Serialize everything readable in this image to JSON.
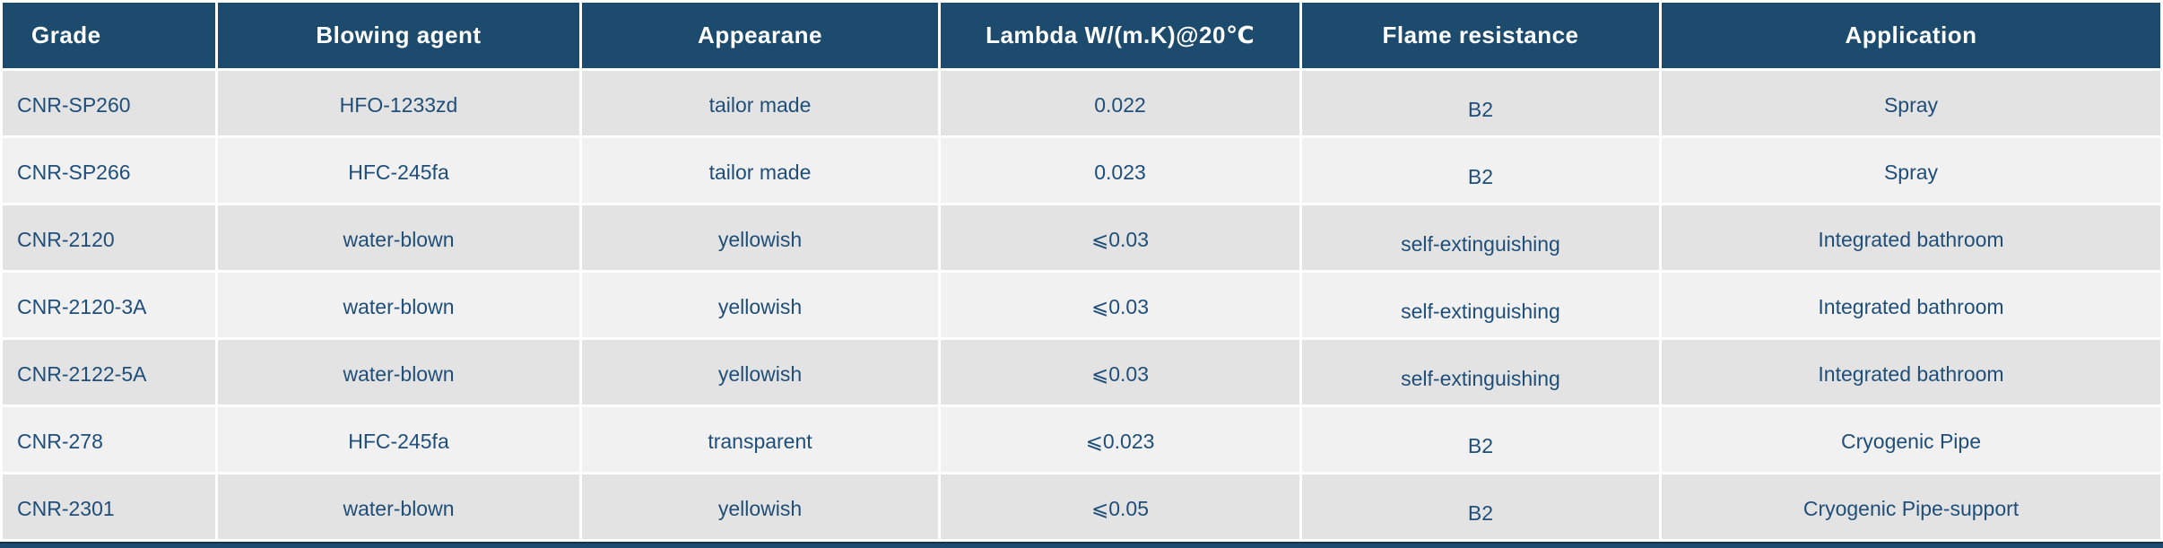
{
  "colors": {
    "header_bg": "#1d4b6e",
    "header_text": "#ffffff",
    "row_odd_bg": "#e3e3e3",
    "row_even_bg": "#f1f1f1",
    "cell_text": "#1f4e79",
    "bottom_bar": "#1d4b6e"
  },
  "table": {
    "columns": [
      {
        "id": "grade",
        "label": "Grade"
      },
      {
        "id": "blowing_agent",
        "label": "Blowing agent"
      },
      {
        "id": "appearance",
        "label": "Appearane"
      },
      {
        "id": "lambda",
        "label": "Lambda W/(m.K)@20℃"
      },
      {
        "id": "flame_resistance",
        "label": "Flame resistance"
      },
      {
        "id": "application",
        "label": "Application"
      }
    ],
    "rows": [
      {
        "grade": "CNR-SP260",
        "blowing_agent": "HFO-1233zd",
        "appearance": "tailor made",
        "lambda": "0.022",
        "flame_resistance": "B2",
        "application": "Spray"
      },
      {
        "grade": "CNR-SP266",
        "blowing_agent": "HFC-245fa",
        "appearance": "tailor made",
        "lambda": "0.023",
        "flame_resistance": "B2",
        "application": "Spray"
      },
      {
        "grade": "CNR-2120",
        "blowing_agent": "water-blown",
        "appearance": "yellowish",
        "lambda": "⩽0.03",
        "flame_resistance": "self-extinguishing",
        "application": "Integrated bathroom"
      },
      {
        "grade": "CNR-2120-3A",
        "blowing_agent": "water-blown",
        "appearance": "yellowish",
        "lambda": "⩽0.03",
        "flame_resistance": "self-extinguishing",
        "application": "Integrated bathroom"
      },
      {
        "grade": "CNR-2122-5A",
        "blowing_agent": "water-blown",
        "appearance": "yellowish",
        "lambda": "⩽0.03",
        "flame_resistance": "self-extinguishing",
        "application": "Integrated bathroom"
      },
      {
        "grade": "CNR-278",
        "blowing_agent": "HFC-245fa",
        "appearance": "transparent",
        "lambda": "⩽0.023",
        "flame_resistance": "B2",
        "application": "Cryogenic Pipe"
      },
      {
        "grade": "CNR-2301",
        "blowing_agent": "water-blown",
        "appearance": "yellowish",
        "lambda": "⩽0.05",
        "flame_resistance": "B2",
        "application": "Cryogenic Pipe-support"
      }
    ]
  }
}
